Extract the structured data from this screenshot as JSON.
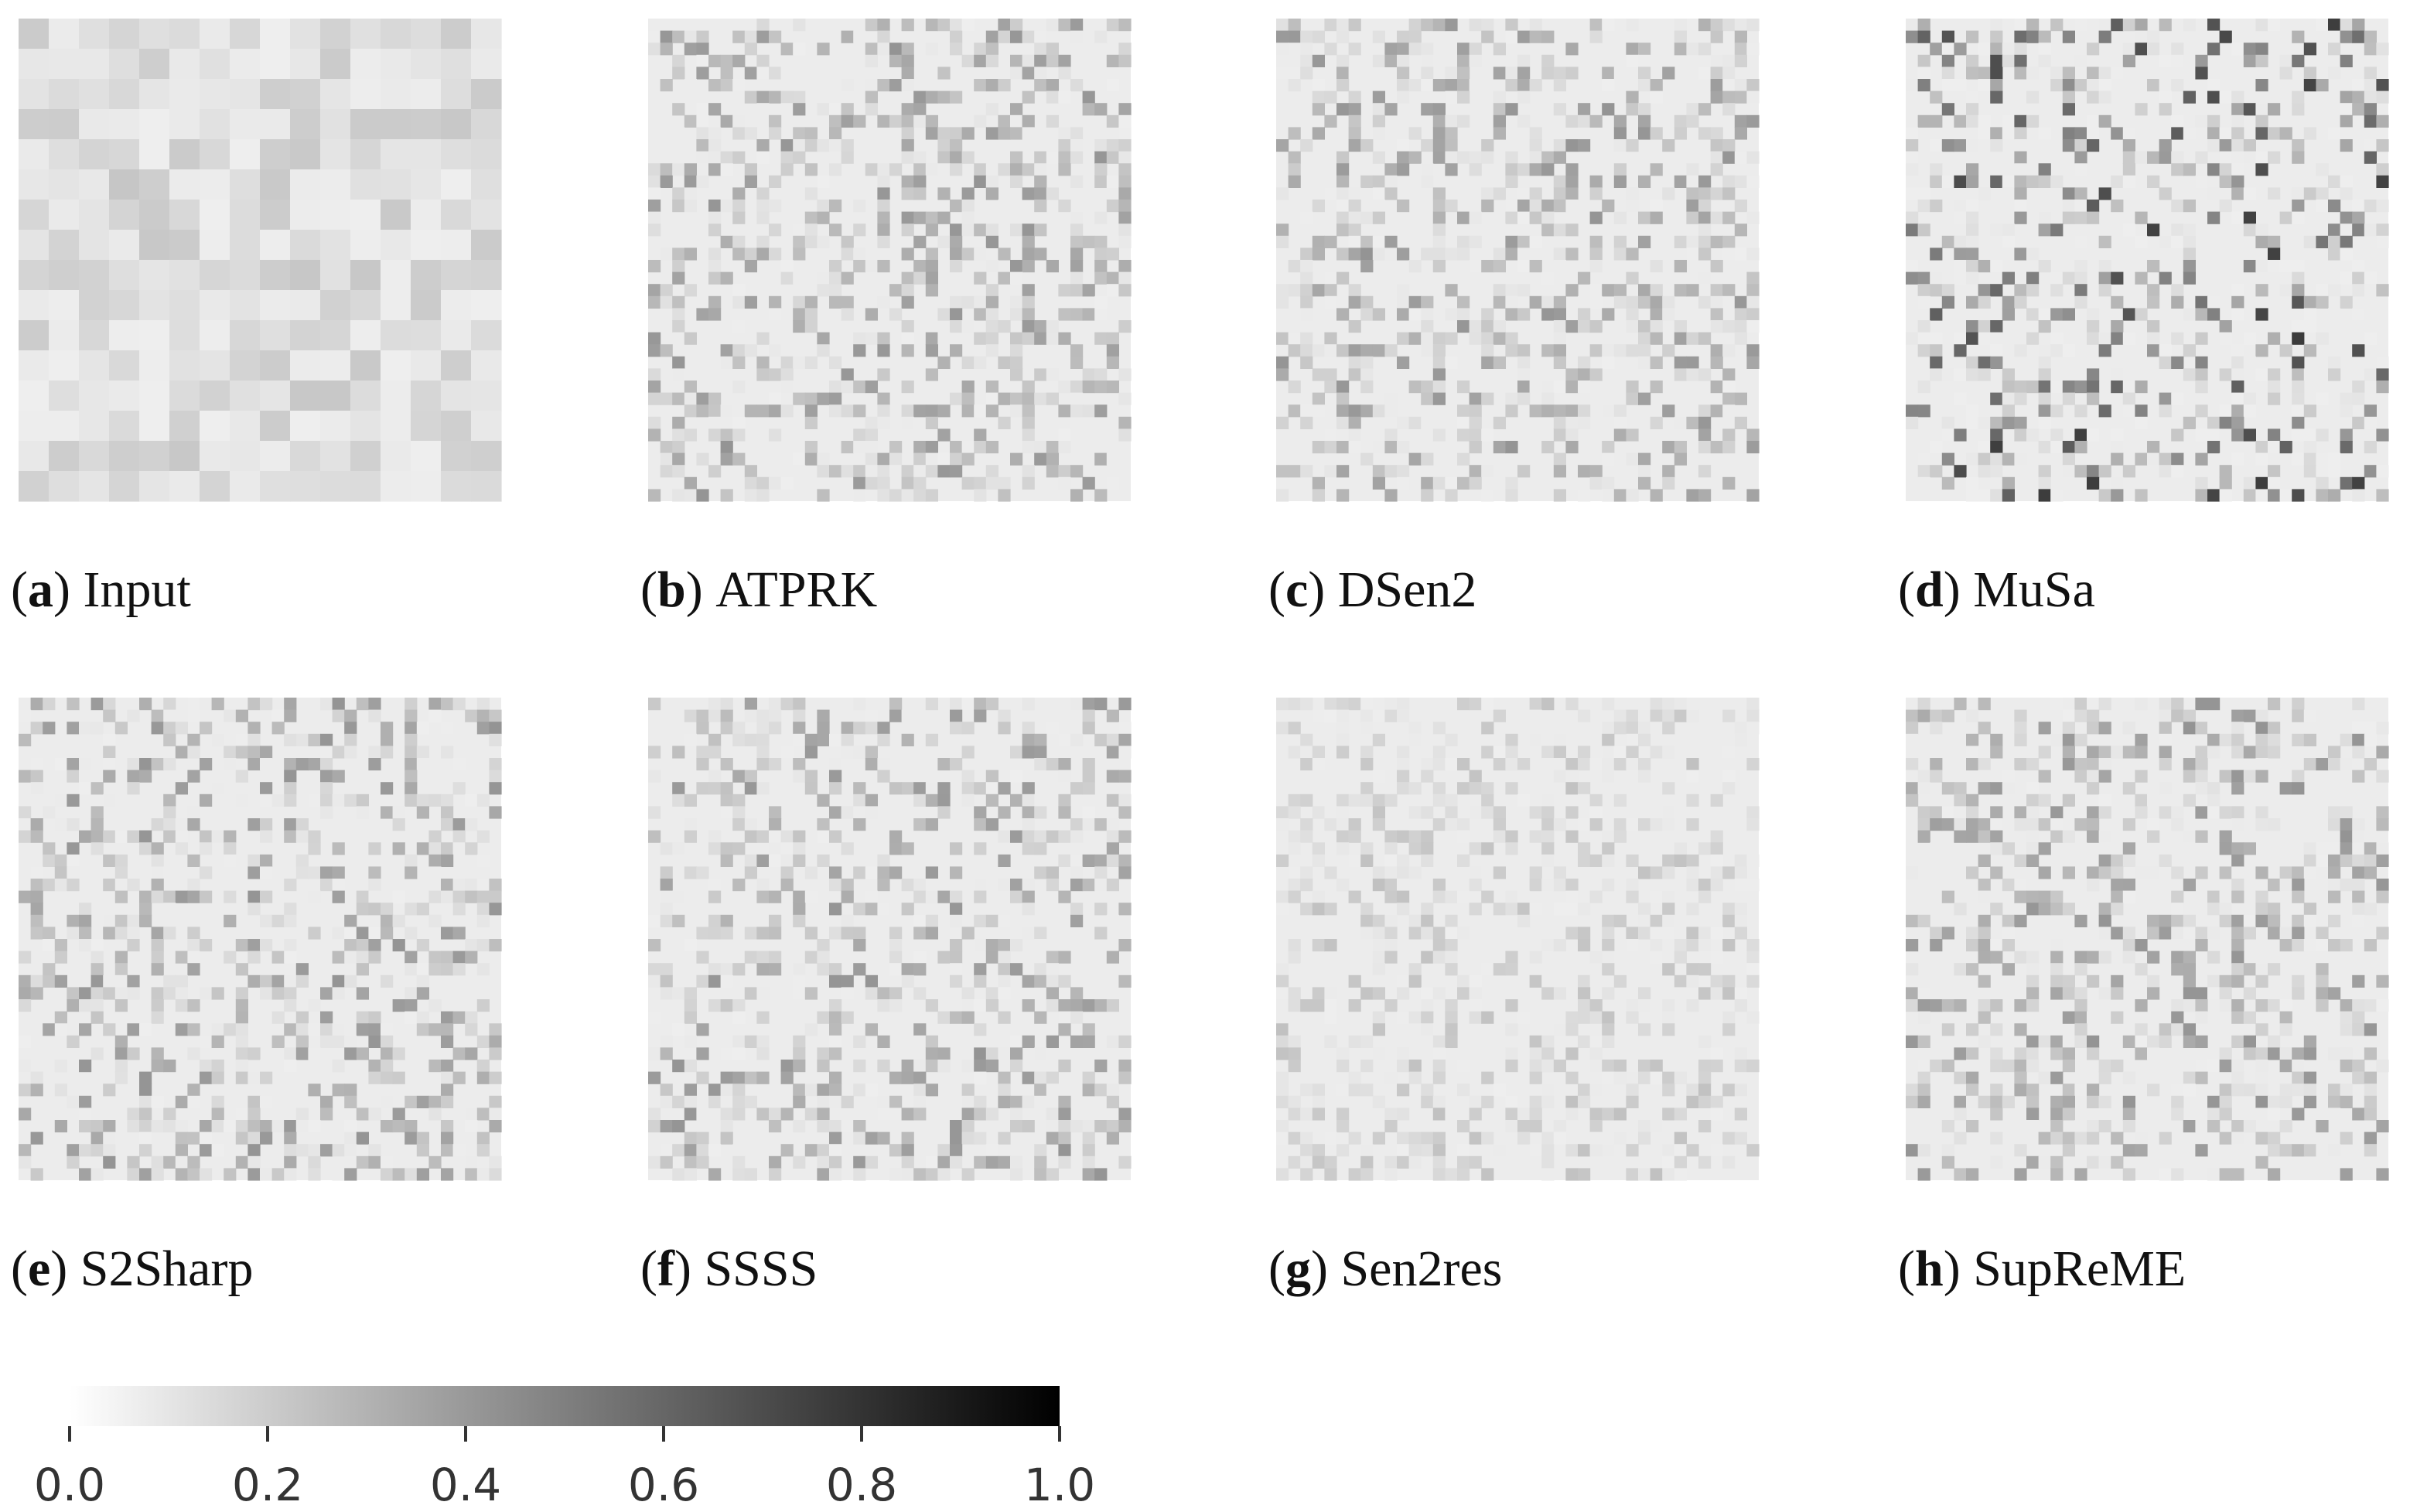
{
  "figure": {
    "label_brackets": [
      "(",
      ")"
    ],
    "panels": [
      {
        "letter": "a",
        "name": "Input"
      },
      {
        "letter": "b",
        "name": "ATPRK"
      },
      {
        "letter": "c",
        "name": "DSen2"
      },
      {
        "letter": "d",
        "name": "MuSa"
      },
      {
        "letter": "e",
        "name": "S2Sharp"
      },
      {
        "letter": "f",
        "name": "SSSS"
      },
      {
        "letter": "g",
        "name": "Sen2res"
      },
      {
        "letter": "h",
        "name": "SupReME"
      }
    ],
    "colorbar": {
      "lim": [
        0,
        1
      ],
      "colors": [
        "#ffffff",
        "#000000"
      ],
      "ticks": [
        {
          "value": 0,
          "label": "0.0"
        },
        0.2,
        0.4,
        0.6,
        0.8,
        {
          "value": 1,
          "label": "1.0"
        }
      ]
    }
  }
}
